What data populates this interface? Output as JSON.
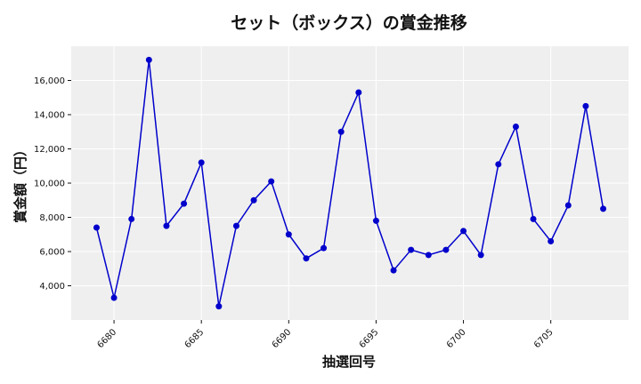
{
  "chart_data": {
    "type": "line",
    "title": "セット（ボックス）の賞金推移",
    "xlabel": "抽選回号",
    "ylabel": "賞金額（円）",
    "x": [
      6679,
      6680,
      6681,
      6682,
      6683,
      6684,
      6685,
      6686,
      6687,
      6688,
      6689,
      6690,
      6691,
      6692,
      6693,
      6694,
      6695,
      6696,
      6697,
      6698,
      6699,
      6700,
      6701,
      6702,
      6703,
      6704,
      6705,
      6706,
      6707,
      6708
    ],
    "series": [
      {
        "values": [
          7400,
          3300,
          7900,
          17200,
          7500,
          8800,
          11200,
          2800,
          7500,
          9000,
          10100,
          7000,
          5600,
          6200,
          13000,
          15300,
          7800,
          4900,
          6100,
          5800,
          6100,
          7200,
          5800,
          11100,
          13300,
          7900,
          6600,
          8700,
          14500,
          8500
        ],
        "color": "#0000cc"
      }
    ],
    "xticks": [
      "6680",
      "6685",
      "6690",
      "6695",
      "6700",
      "6705"
    ],
    "yticks": [
      "4,000",
      "6,000",
      "8,000",
      "10,000",
      "12,000",
      "14,000",
      "16,000"
    ],
    "xlim": [
      6677.55,
      6709.45
    ],
    "ylim": [
      2000,
      18000
    ],
    "grid": true,
    "plot_background": "#efefef"
  }
}
